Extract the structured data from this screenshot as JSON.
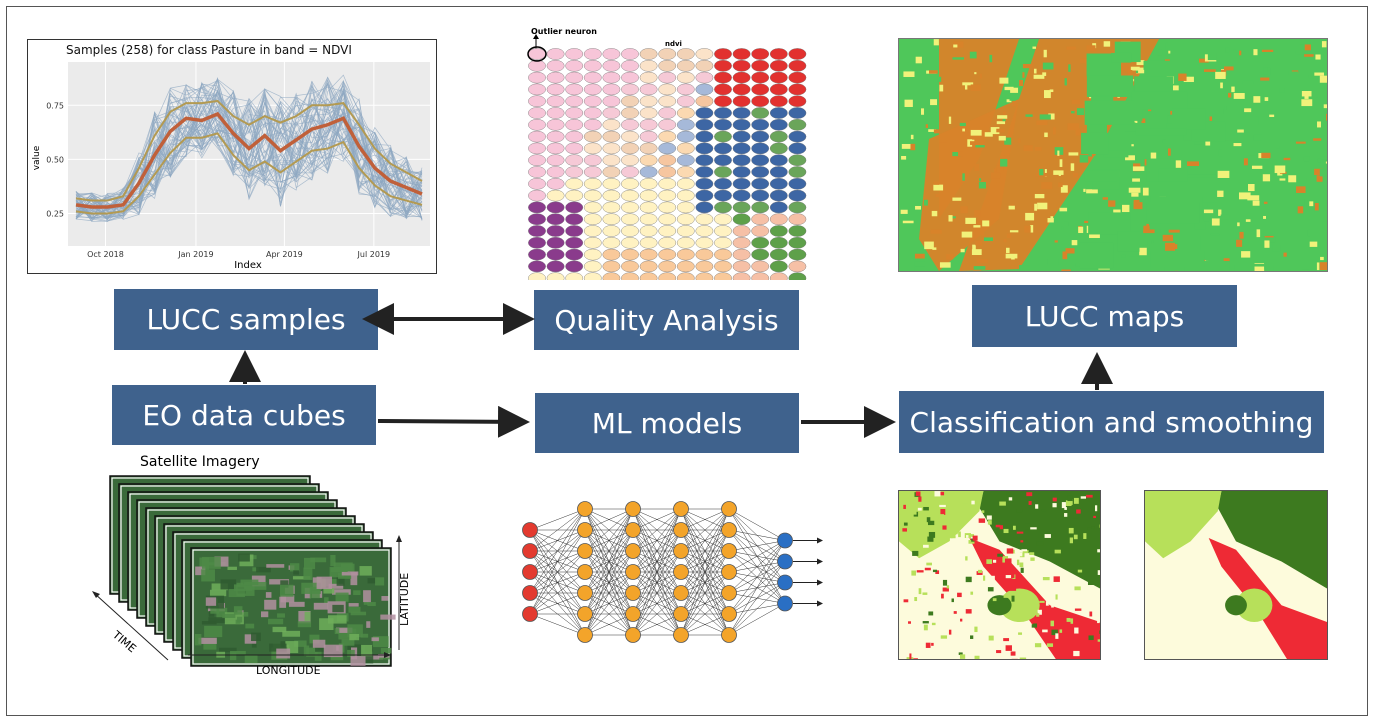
{
  "boxes": {
    "lucc_samples": "LUCC samples",
    "quality_analysis": "Quality Analysis",
    "lucc_maps": "LUCC maps",
    "eo_data_cubes": "EO data cubes",
    "ml_models": "ML models",
    "classification": "Classification and smoothing"
  },
  "chart": {
    "title": "Samples (258) for class Pasture in band = NDVI",
    "xlabel": "Index",
    "ylabel": "value",
    "yticks": [
      "0.25",
      "0.50",
      "0.75"
    ],
    "xticks": [
      "Oct 2018",
      "Jan 2019",
      "Apr 2019",
      "Jul 2019"
    ]
  },
  "som": {
    "outlier_label": "Outlier neuron",
    "band_label": "ndvi"
  },
  "cube": {
    "title": "Satellite Imagery",
    "time_label": "TIME",
    "latitude_label": "LATITUDE",
    "longitude_label": "LONGITUDE"
  },
  "colors": {
    "box": "#3f628d",
    "pasture": "#4fc75a",
    "crop": "#d8832a",
    "other": "#f1f27a",
    "forest": "#3d7a1f",
    "deforest": "#ee2a35",
    "light": "#fdfbdc",
    "lightgreen": "#b7e05a"
  },
  "chart_data": {
    "type": "line",
    "title": "Samples (258) for class Pasture in band = NDVI",
    "xlabel": "Index",
    "ylabel": "value",
    "x": [
      "2018-09-01",
      "2018-09-17",
      "2018-10-03",
      "2018-10-19",
      "2018-11-04",
      "2018-11-20",
      "2018-12-06",
      "2018-12-22",
      "2019-01-07",
      "2019-01-23",
      "2019-02-08",
      "2019-02-24",
      "2019-03-12",
      "2019-03-28",
      "2019-04-13",
      "2019-04-29",
      "2019-05-15",
      "2019-05-31",
      "2019-06-16",
      "2019-07-02",
      "2019-07-18",
      "2019-08-03",
      "2019-08-19"
    ],
    "series": [
      {
        "values": [
          0.29,
          0.28,
          0.28,
          0.29,
          0.39,
          0.52,
          0.63,
          0.69,
          0.68,
          0.71,
          0.62,
          0.55,
          0.61,
          0.54,
          0.59,
          0.64,
          0.66,
          0.69,
          0.56,
          0.46,
          0.4,
          0.37,
          0.34
        ]
      },
      {
        "values": [
          0.32,
          0.31,
          0.31,
          0.33,
          0.46,
          0.61,
          0.72,
          0.76,
          0.76,
          0.77,
          0.7,
          0.66,
          0.7,
          0.67,
          0.7,
          0.75,
          0.75,
          0.76,
          0.66,
          0.55,
          0.48,
          0.44,
          0.4
        ]
      },
      {
        "values": [
          0.26,
          0.25,
          0.25,
          0.26,
          0.33,
          0.43,
          0.53,
          0.6,
          0.6,
          0.62,
          0.52,
          0.45,
          0.49,
          0.44,
          0.49,
          0.54,
          0.55,
          0.58,
          0.46,
          0.38,
          0.33,
          0.31,
          0.29
        ]
      }
    ],
    "xticks": [
      "Oct 2018",
      "Jan 2019",
      "Apr 2019",
      "Jul 2019"
    ],
    "yticks": [
      0.25,
      0.5,
      0.75
    ],
    "ylim": [
      0.1,
      0.95
    ],
    "grid": true,
    "legend": "none"
  }
}
